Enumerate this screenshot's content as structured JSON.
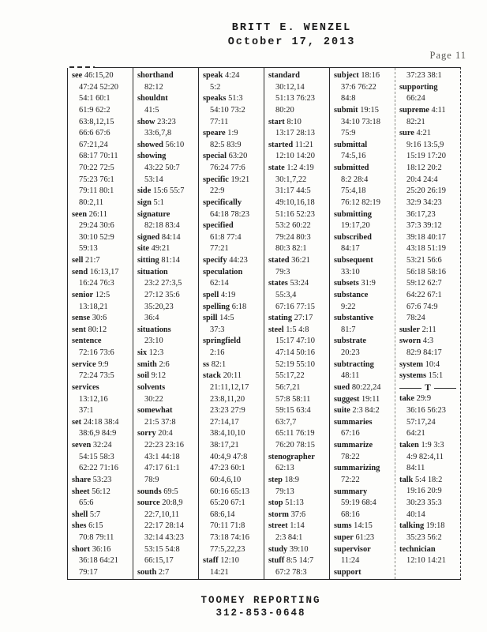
{
  "page": {
    "title": "BRITT E. WENZEL",
    "date": "October 17, 2013",
    "page_label": "Page 11"
  },
  "footer": {
    "line1": "TOOMEY REPORTING",
    "line2": "312-853-0648"
  },
  "index": {
    "section_marker": "T",
    "columns": [
      [
        {
          "t": "see",
          "r": "46:15,20"
        },
        {
          "r": "47:24 52:20"
        },
        {
          "r": "54:1 60:1"
        },
        {
          "r": "61:9 62:2"
        },
        {
          "r": "63:8,12,15"
        },
        {
          "r": "66:6 67:6"
        },
        {
          "r": "67:21,24"
        },
        {
          "r": "68:17 70:11"
        },
        {
          "r": "70:22 72:5"
        },
        {
          "r": "75:23 76:1"
        },
        {
          "r": "79:11 80:1"
        },
        {
          "r": "80:2,11"
        },
        {
          "t": "seen",
          "r": "26:11"
        },
        {
          "r": "29:24 30:6"
        },
        {
          "r": "30:10 52:9"
        },
        {
          "r": "59:13"
        },
        {
          "t": "sell",
          "r": "21:7"
        },
        {
          "t": "send",
          "r": "16:13,17"
        },
        {
          "r": "16:24 76:3"
        },
        {
          "t": "senior",
          "r": "12:5"
        },
        {
          "r": "13:18,21"
        },
        {
          "t": "sense",
          "r": "30:6"
        },
        {
          "t": "sent",
          "r": "80:12"
        },
        {
          "t": "sentence",
          "r": ""
        },
        {
          "r": "72:16 73:6"
        },
        {
          "t": "service",
          "r": "9:9"
        },
        {
          "r": "72:24 73:5"
        },
        {
          "t": "services",
          "r": ""
        },
        {
          "r": "13:12,16"
        },
        {
          "r": "37:1"
        },
        {
          "t": "set",
          "r": "24:18 38:4"
        },
        {
          "r": "38:6,9 84:9"
        },
        {
          "t": "seven",
          "r": "32:24"
        },
        {
          "r": "54:15 58:3"
        },
        {
          "r": "62:22 71:16"
        },
        {
          "t": "share",
          "r": "53:23"
        },
        {
          "t": "sheet",
          "r": "56:12"
        },
        {
          "r": "65:6"
        },
        {
          "t": "shell",
          "r": "5:7"
        },
        {
          "t": "shes",
          "r": "6:15"
        },
        {
          "r": "70:8 79:11"
        },
        {
          "t": "short",
          "r": "36:16"
        },
        {
          "r": "36:18 64:21"
        },
        {
          "r": "79:17"
        }
      ],
      [
        {
          "t": "shorthand",
          "r": ""
        },
        {
          "r": "82:12"
        },
        {
          "t": "shouldnt",
          "r": ""
        },
        {
          "r": "41:5"
        },
        {
          "t": "show",
          "r": "23:23"
        },
        {
          "r": "33:6,7,8"
        },
        {
          "t": "showed",
          "r": "56:10"
        },
        {
          "t": "showing",
          "r": ""
        },
        {
          "r": "43:22 50:7"
        },
        {
          "r": "53:14"
        },
        {
          "t": "side",
          "r": "15:6 55:7"
        },
        {
          "t": "sign",
          "r": "5:1"
        },
        {
          "t": "signature",
          "r": ""
        },
        {
          "r": "82:18 83:4"
        },
        {
          "t": "signed",
          "r": "84:14"
        },
        {
          "t": "site",
          "r": "49:21"
        },
        {
          "t": "sitting",
          "r": "81:14"
        },
        {
          "t": "situation",
          "r": ""
        },
        {
          "r": "23:2 27:3,5"
        },
        {
          "r": "27:12 35:6"
        },
        {
          "r": "35:20,23"
        },
        {
          "r": "36:4"
        },
        {
          "t": "situations",
          "r": ""
        },
        {
          "r": "23:10"
        },
        {
          "t": "six",
          "r": "12:3"
        },
        {
          "t": "smith",
          "r": "2:6"
        },
        {
          "t": "soil",
          "r": "9:12"
        },
        {
          "t": "solvents",
          "r": ""
        },
        {
          "r": "30:22"
        },
        {
          "t": "somewhat",
          "r": ""
        },
        {
          "r": "21:5 37:8"
        },
        {
          "t": "sorry",
          "r": "20:4"
        },
        {
          "r": "22:23 23:16"
        },
        {
          "r": "43:1 44:18"
        },
        {
          "r": "47:17 61:1"
        },
        {
          "r": "78:9"
        },
        {
          "t": "sounds",
          "r": "69:5"
        },
        {
          "t": "source",
          "r": "20:8,9"
        },
        {
          "r": "22:7,10,11"
        },
        {
          "r": "22:17 28:14"
        },
        {
          "r": "32:14 43:23"
        },
        {
          "r": "53:15 54:8"
        },
        {
          "r": "66:15,17"
        },
        {
          "t": "south",
          "r": "2:7"
        }
      ],
      [
        {
          "t": "speak",
          "r": "4:24"
        },
        {
          "r": "5:2"
        },
        {
          "t": "speaks",
          "r": "51:3"
        },
        {
          "r": "54:10 73:2"
        },
        {
          "r": "77:11"
        },
        {
          "t": "speare",
          "r": "1:9"
        },
        {
          "r": "82:5 83:9"
        },
        {
          "t": "special",
          "r": "63:20"
        },
        {
          "r": "76:24 77:6"
        },
        {
          "t": "specific",
          "r": "19:21"
        },
        {
          "r": "22:9"
        },
        {
          "t": "specifically",
          "r": ""
        },
        {
          "r": "64:18 78:23"
        },
        {
          "t": "specified",
          "r": ""
        },
        {
          "r": "61:8 77:4"
        },
        {
          "r": "77:21"
        },
        {
          "t": "specify",
          "r": "44:23"
        },
        {
          "t": "speculation",
          "r": ""
        },
        {
          "r": "62:14"
        },
        {
          "t": "spell",
          "r": "4:19"
        },
        {
          "t": "spelling",
          "r": "6:18"
        },
        {
          "t": "spill",
          "r": "14:5"
        },
        {
          "r": "37:3"
        },
        {
          "t": "springfield",
          "r": ""
        },
        {
          "r": "2:16"
        },
        {
          "t": "ss",
          "r": "82:1"
        },
        {
          "t": "stack",
          "r": "20:11"
        },
        {
          "r": "21:11,12,17"
        },
        {
          "r": "23:8,11,20"
        },
        {
          "r": "23:23 27:9"
        },
        {
          "r": "27:14,17"
        },
        {
          "r": "38:4,10,10"
        },
        {
          "r": "38:17,21"
        },
        {
          "r": "40:4,9 47:8"
        },
        {
          "r": "47:23 60:1"
        },
        {
          "r": "60:4,6,10"
        },
        {
          "r": "60:16 65:13"
        },
        {
          "r": "65:20 67:1"
        },
        {
          "r": "68:6,14"
        },
        {
          "r": "70:11 71:8"
        },
        {
          "r": "73:18 74:16"
        },
        {
          "r": "77:5,22,23"
        },
        {
          "t": "staff",
          "r": "12:10"
        },
        {
          "r": "14:21"
        }
      ],
      [
        {
          "t": "standard",
          "r": ""
        },
        {
          "r": "30:12,14"
        },
        {
          "r": "51:13 76:23"
        },
        {
          "r": "80:20"
        },
        {
          "t": "start",
          "r": "8:10"
        },
        {
          "r": "13:17 28:13"
        },
        {
          "t": "started",
          "r": "11:21"
        },
        {
          "r": "12:10 14:20"
        },
        {
          "t": "state",
          "r": "1:2 4:19"
        },
        {
          "r": "30:1,7,22"
        },
        {
          "r": "31:17 44:5"
        },
        {
          "r": "49:10,16,18"
        },
        {
          "r": "51:16 52:23"
        },
        {
          "r": "53:2 60:22"
        },
        {
          "r": "79:24 80:3"
        },
        {
          "r": "80:3 82:1"
        },
        {
          "t": "stated",
          "r": "36:21"
        },
        {
          "r": "79:3"
        },
        {
          "t": "states",
          "r": "53:24"
        },
        {
          "r": "55:3,4"
        },
        {
          "r": "67:16 77:15"
        },
        {
          "t": "stating",
          "r": "27:17"
        },
        {
          "t": "steel",
          "r": "1:5 4:8"
        },
        {
          "r": "15:17 47:10"
        },
        {
          "r": "47:14 50:16"
        },
        {
          "r": "52:19 55:10"
        },
        {
          "r": "55:17,22"
        },
        {
          "r": "56:7,21"
        },
        {
          "r": "57:8 58:11"
        },
        {
          "r": "59:15 63:4"
        },
        {
          "r": "63:7,7"
        },
        {
          "r": "65:11 76:19"
        },
        {
          "r": "76:20 78:15"
        },
        {
          "t": "stenographer",
          "r": ""
        },
        {
          "r": "62:13"
        },
        {
          "t": "step",
          "r": "18:9"
        },
        {
          "r": "79:13"
        },
        {
          "t": "stop",
          "r": "51:13"
        },
        {
          "t": "storm",
          "r": "37:6"
        },
        {
          "t": "street",
          "r": "1:14"
        },
        {
          "r": "2:3 84:1"
        },
        {
          "t": "study",
          "r": "39:10"
        },
        {
          "t": "stuff",
          "r": "8:5 14:7"
        },
        {
          "r": "67:2 78:3"
        }
      ],
      [
        {
          "t": "subject",
          "r": "18:16"
        },
        {
          "r": "37:6 76:22"
        },
        {
          "r": "84:8"
        },
        {
          "t": "submit",
          "r": "19:15"
        },
        {
          "r": "34:10 73:18"
        },
        {
          "r": "75:9"
        },
        {
          "t": "submittal",
          "r": ""
        },
        {
          "r": "74:5,16"
        },
        {
          "t": "submitted",
          "r": ""
        },
        {
          "r": "8:2 28:4"
        },
        {
          "r": "75:4,18"
        },
        {
          "r": "76:12 82:19"
        },
        {
          "t": "submitting",
          "r": ""
        },
        {
          "r": "19:17,20"
        },
        {
          "t": "subscribed",
          "r": ""
        },
        {
          "r": "84:17"
        },
        {
          "t": "subsequent",
          "r": ""
        },
        {
          "r": "33:10"
        },
        {
          "t": "subsets",
          "r": "31:9"
        },
        {
          "t": "substance",
          "r": ""
        },
        {
          "r": "9:22"
        },
        {
          "t": "substantive",
          "r": ""
        },
        {
          "r": "81:7"
        },
        {
          "t": "substrate",
          "r": ""
        },
        {
          "r": "20:23"
        },
        {
          "t": "subtracting",
          "r": ""
        },
        {
          "r": "48:11"
        },
        {
          "t": "sued",
          "r": "80:22,24"
        },
        {
          "t": "suggest",
          "r": "19:11"
        },
        {
          "t": "suite",
          "r": "2:3 84:2"
        },
        {
          "t": "summaries",
          "r": ""
        },
        {
          "r": "67:16"
        },
        {
          "t": "summarize",
          "r": ""
        },
        {
          "r": "78:22"
        },
        {
          "t": "summarizing",
          "r": ""
        },
        {
          "r": "72:22"
        },
        {
          "t": "summary",
          "r": ""
        },
        {
          "r": "59:19 68:4"
        },
        {
          "r": "68:16"
        },
        {
          "t": "sums",
          "r": "14:15"
        },
        {
          "t": "super",
          "r": "61:23"
        },
        {
          "t": "supervisor",
          "r": ""
        },
        {
          "r": "11:24"
        },
        {
          "t": "support",
          "r": ""
        }
      ],
      [
        {
          "r": "37:23 38:1"
        },
        {
          "t": "supporting",
          "r": ""
        },
        {
          "r": "66:24"
        },
        {
          "t": "supreme",
          "r": "4:11"
        },
        {
          "r": "82:21"
        },
        {
          "t": "sure",
          "r": "4:21"
        },
        {
          "r": "9:16 13:5,9"
        },
        {
          "r": "15:19 17:20"
        },
        {
          "r": "18:12 20:2"
        },
        {
          "r": "20:4 24:4"
        },
        {
          "r": "25:20 26:19"
        },
        {
          "r": "32:9 34:23"
        },
        {
          "r": "36:17,23"
        },
        {
          "r": "37:3 39:12"
        },
        {
          "r": "39:18 40:17"
        },
        {
          "r": "43:18 51:19"
        },
        {
          "r": "53:21 56:6"
        },
        {
          "r": "56:18 58:16"
        },
        {
          "r": "59:12 62:7"
        },
        {
          "r": "64:22 67:1"
        },
        {
          "r": "67:6 74:9"
        },
        {
          "r": "78:24"
        },
        {
          "t": "susler",
          "r": "2:11"
        },
        {
          "t": "sworn",
          "r": "4:3"
        },
        {
          "r": "82:9 84:17"
        },
        {
          "t": "system",
          "r": "10:4"
        },
        {
          "t": "systems",
          "r": "15:1"
        },
        {
          "s": "T"
        },
        {
          "t": "take",
          "r": "29:9"
        },
        {
          "r": "36:16 56:23"
        },
        {
          "r": "57:17,24"
        },
        {
          "r": "64:21"
        },
        {
          "t": "taken",
          "r": "1:9 3:3"
        },
        {
          "r": "4:9 82:4,11"
        },
        {
          "r": "84:11"
        },
        {
          "t": "talk",
          "r": "5:4 18:2"
        },
        {
          "r": "19:16 20:9"
        },
        {
          "r": "30:23 35:3"
        },
        {
          "r": "40:14"
        },
        {
          "t": "talking",
          "r": "19:18"
        },
        {
          "r": "35:23 56:2"
        },
        {
          "t": "technician",
          "r": ""
        },
        {
          "r": "12:10 14:21"
        }
      ]
    ]
  }
}
